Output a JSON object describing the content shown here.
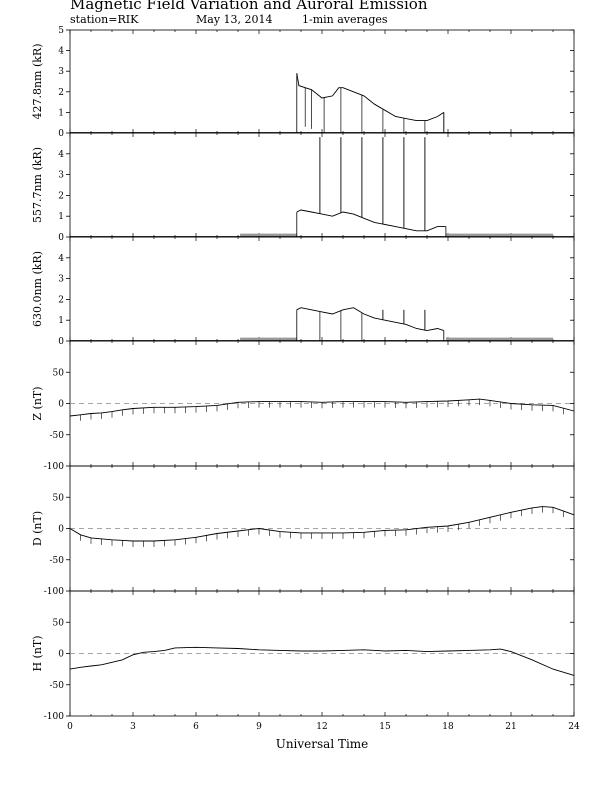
{
  "header": {
    "title": "Magnetic Field Variation and Auroral Emission",
    "station": "station=RIK",
    "date": "May 13, 2014",
    "averaging": "1-min averages"
  },
  "chart_data": [
    {
      "id": "aurora-4278",
      "type": "line",
      "ylabel": "427.8nm (kR)",
      "ylim": [
        0,
        5
      ],
      "yticks": [
        0,
        1,
        2,
        3,
        4,
        5
      ],
      "xlim": [
        0,
        24
      ],
      "x": [
        10.8,
        10.9,
        11.2,
        11.5,
        12.0,
        12.5,
        12.8,
        13.0,
        13.5,
        14.0,
        14.5,
        15.0,
        15.5,
        16.0,
        16.5,
        17.0,
        17.5,
        17.8
      ],
      "y": [
        2.9,
        2.3,
        2.2,
        2.1,
        1.7,
        1.8,
        2.2,
        2.2,
        2.0,
        1.8,
        1.4,
        1.1,
        0.8,
        0.7,
        0.6,
        0.6,
        0.8,
        1.0
      ],
      "drops": [
        {
          "x": 11.2,
          "y": 0.3
        },
        {
          "x": 11.5,
          "y": 0.2
        },
        {
          "x": 12.1,
          "y": 0.0
        },
        {
          "x": 12.9,
          "y": 0.0
        },
        {
          "x": 13.9,
          "y": 0.0
        },
        {
          "x": 14.9,
          "y": 0.0
        },
        {
          "x": 15.9,
          "y": 0.0
        },
        {
          "x": 16.9,
          "y": 0.0
        },
        {
          "x": 17.8,
          "y": 0.0
        }
      ]
    },
    {
      "id": "aurora-5577",
      "type": "line",
      "ylabel": "557.7nm (kR)",
      "ylim": [
        0,
        5
      ],
      "yticks": [
        0,
        1,
        2,
        3,
        4
      ],
      "xlim": [
        0,
        24
      ],
      "x": [
        10.8,
        11.0,
        11.5,
        12.0,
        12.5,
        13.0,
        13.5,
        14.0,
        14.5,
        15.0,
        15.5,
        16.0,
        16.5,
        17.0,
        17.5,
        17.9
      ],
      "y": [
        1.2,
        1.3,
        1.2,
        1.1,
        1.0,
        1.2,
        1.1,
        0.9,
        0.7,
        0.6,
        0.5,
        0.4,
        0.3,
        0.3,
        0.5,
        0.5
      ],
      "spikes": [
        {
          "x": 11.9,
          "y": 4.8
        },
        {
          "x": 12.9,
          "y": 4.8
        },
        {
          "x": 13.9,
          "y": 4.8
        },
        {
          "x": 14.9,
          "y": 4.8
        },
        {
          "x": 15.9,
          "y": 4.8
        },
        {
          "x": 16.9,
          "y": 4.8
        }
      ],
      "baseline_segments": [
        {
          "x0": 8.1,
          "x1": 10.8,
          "y": 0.1
        },
        {
          "x0": 17.9,
          "x1": 23.0,
          "y": 0.1
        }
      ]
    },
    {
      "id": "aurora-6300",
      "type": "line",
      "ylabel": "630.0nm (kR)",
      "ylim": [
        0,
        5
      ],
      "yticks": [
        0,
        1,
        2,
        3,
        4
      ],
      "xlim": [
        0,
        24
      ],
      "x": [
        10.8,
        11.0,
        11.5,
        12.0,
        12.5,
        13.0,
        13.5,
        14.0,
        14.5,
        15.0,
        15.5,
        16.0,
        16.5,
        17.0,
        17.5,
        17.8
      ],
      "y": [
        1.5,
        1.6,
        1.5,
        1.4,
        1.3,
        1.5,
        1.6,
        1.3,
        1.1,
        1.0,
        0.9,
        0.8,
        0.6,
        0.5,
        0.6,
        0.5
      ],
      "spikes": [
        {
          "x": 14.9,
          "y": 1.5
        },
        {
          "x": 15.9,
          "y": 1.5
        },
        {
          "x": 16.9,
          "y": 1.5
        }
      ],
      "drops": [
        {
          "x": 11.9,
          "y": 0.0
        },
        {
          "x": 12.9,
          "y": 0.0
        },
        {
          "x": 13.9,
          "y": 0.0
        }
      ],
      "baseline_segments": [
        {
          "x0": 8.1,
          "x1": 10.8,
          "y": 0.1
        },
        {
          "x0": 17.9,
          "x1": 23.0,
          "y": 0.1
        }
      ]
    },
    {
      "id": "mag-z",
      "type": "line",
      "ylabel": "Z (nT)",
      "ylim": [
        -100,
        100
      ],
      "yticks": [
        -100,
        -50,
        0,
        50
      ],
      "zero_line": true,
      "xlim": [
        0,
        24
      ],
      "x": [
        0,
        0.5,
        1,
        1.5,
        2,
        2.5,
        3,
        4,
        5,
        6,
        7,
        8,
        9,
        10,
        11,
        12,
        13,
        14,
        15,
        16,
        17,
        18,
        19,
        19.5,
        20,
        21,
        22,
        23,
        24
      ],
      "y": [
        -20,
        -18,
        -16,
        -15,
        -13,
        -10,
        -8,
        -6,
        -6,
        -5,
        -3,
        2,
        3,
        3,
        3,
        2,
        3,
        3,
        3,
        2,
        3,
        4,
        6,
        7,
        5,
        0,
        -2,
        -3,
        -12
      ],
      "hourly_ticks": true
    },
    {
      "id": "mag-d",
      "type": "line",
      "ylabel": "D (nT)",
      "ylim": [
        -100,
        100
      ],
      "yticks": [
        -100,
        -50,
        0,
        50
      ],
      "zero_line": true,
      "xlim": [
        0,
        24
      ],
      "x": [
        0,
        0.5,
        1,
        2,
        3,
        4,
        5,
        6,
        7,
        8,
        9,
        10,
        11,
        12,
        13,
        14,
        15,
        16,
        17,
        18,
        19,
        20,
        21,
        22,
        22.5,
        23,
        24
      ],
      "y": [
        0,
        -10,
        -15,
        -18,
        -20,
        -20,
        -18,
        -14,
        -8,
        -4,
        0,
        -5,
        -7,
        -7,
        -7,
        -6,
        -3,
        -2,
        2,
        4,
        10,
        18,
        26,
        33,
        35,
        34,
        22
      ],
      "hourly_ticks": true
    },
    {
      "id": "mag-h",
      "type": "line",
      "ylabel": "H (nT)",
      "ylim": [
        -100,
        100
      ],
      "yticks": [
        -100,
        -50,
        0,
        50
      ],
      "zero_line": true,
      "xlim": [
        0,
        24
      ],
      "xticks": [
        0,
        3,
        6,
        9,
        12,
        15,
        18,
        21,
        24
      ],
      "xlabel": "Universal Time",
      "x": [
        0,
        0.5,
        1,
        1.5,
        2,
        2.5,
        3,
        3.5,
        4,
        4.5,
        5,
        6,
        7,
        8,
        9,
        10,
        11,
        12,
        13,
        14,
        15,
        16,
        17,
        18,
        19,
        20,
        20.5,
        21,
        22,
        23,
        24
      ],
      "y": [
        -25,
        -22,
        -20,
        -18,
        -14,
        -10,
        -2,
        2,
        3,
        5,
        9,
        10,
        9,
        8,
        6,
        5,
        4,
        4,
        5,
        6,
        4,
        5,
        3,
        4,
        5,
        6,
        7,
        3,
        -10,
        -25,
        -35
      ],
      "hourly_ticks": false
    }
  ]
}
